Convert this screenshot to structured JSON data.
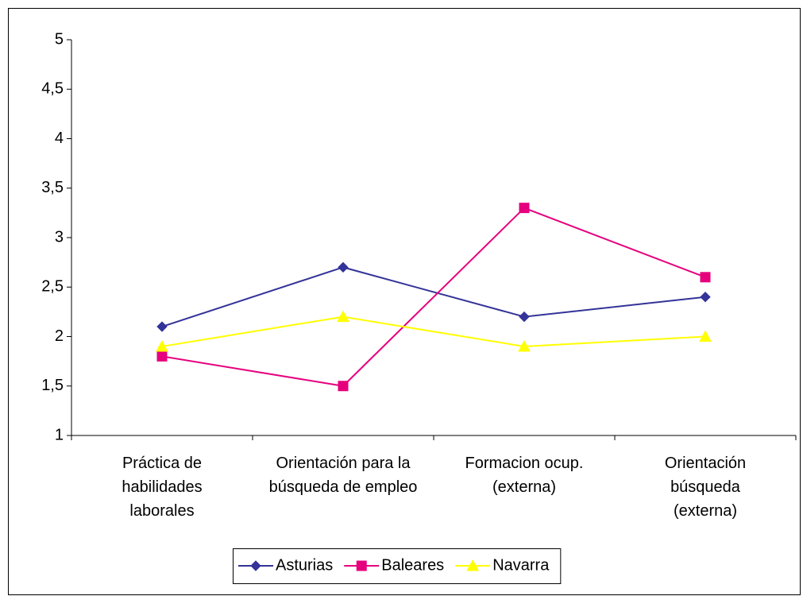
{
  "chart_data": {
    "type": "line",
    "categories": [
      "Práctica de habilidades laborales",
      "Orientación para la búsqueda de empleo",
      "Formacion ocup. (externa)",
      "Orientación búsqueda (externa)"
    ],
    "series": [
      {
        "name": "Asturias",
        "color": "#333399",
        "marker": "diamond",
        "values": [
          2.1,
          2.7,
          2.2,
          2.4
        ]
      },
      {
        "name": "Baleares",
        "color": "#e6007e",
        "marker": "square",
        "values": [
          1.8,
          1.5,
          3.3,
          2.6
        ]
      },
      {
        "name": "Navarra",
        "color": "#ffff00",
        "marker": "triangle",
        "values": [
          1.9,
          2.2,
          1.9,
          2.0
        ]
      }
    ],
    "ylim": [
      1,
      5
    ],
    "yticks": [
      1,
      {
        "value": 1.5,
        "label": "1,5"
      },
      2,
      {
        "value": 2.5,
        "label": "2,5"
      },
      3,
      {
        "value": 3.5,
        "label": "3,5"
      },
      4,
      {
        "value": 4.5,
        "label": "4,5"
      },
      5
    ],
    "grid": false,
    "legend": "bottom"
  }
}
